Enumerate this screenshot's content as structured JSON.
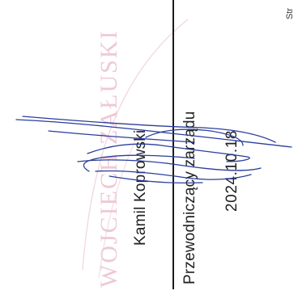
{
  "document": {
    "signer_name": "Kamil Koprowski",
    "signer_role": "Przewodniczący zarządu",
    "date": "2024.10.18",
    "side_label": "Str",
    "stamp_text": "WOJCIECH ZAŁUSKI"
  },
  "colors": {
    "ink": "#222222",
    "signature": "#2a3d9c",
    "stamp": "#e9b8c8"
  }
}
